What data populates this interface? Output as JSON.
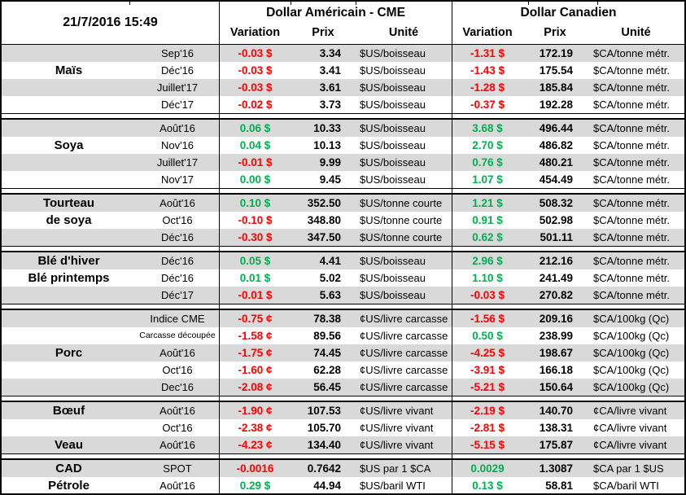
{
  "timestamp": "21/7/2016 15:49",
  "header": {
    "us_group": "Dollar Américain - CME",
    "ca_group": "Dollar Canadien",
    "columns": {
      "variation": "Variation",
      "prix": "Prix",
      "unite": "Unité"
    }
  },
  "colors": {
    "up": "#00B050",
    "down": "#FF0000",
    "row_alt": "#D9D9D9",
    "border": "#000000"
  },
  "sections": [
    {
      "name": "mais",
      "rows": [
        {
          "label": "",
          "month": "Sep'16",
          "us_var": "-0.03 $",
          "us_dir": "down",
          "us_prix": "3.34",
          "us_unit": "$US/boisseau",
          "ca_var": "-1.31 $",
          "ca_dir": "down",
          "ca_prix": "172.19",
          "ca_unit": "$CA/tonne métr."
        },
        {
          "label": "Maïs",
          "month": "Déc'16",
          "us_var": "-0.03 $",
          "us_dir": "down",
          "us_prix": "3.41",
          "us_unit": "$US/boisseau",
          "ca_var": "-1.43 $",
          "ca_dir": "down",
          "ca_prix": "175.54",
          "ca_unit": "$CA/tonne métr."
        },
        {
          "label": "",
          "month": "Juillet'17",
          "us_var": "-0.03 $",
          "us_dir": "down",
          "us_prix": "3.61",
          "us_unit": "$US/boisseau",
          "ca_var": "-1.28 $",
          "ca_dir": "down",
          "ca_prix": "185.84",
          "ca_unit": "$CA/tonne métr."
        },
        {
          "label": "",
          "month": "Déc'17",
          "us_var": "-0.02 $",
          "us_dir": "down",
          "us_prix": "3.73",
          "us_unit": "$US/boisseau",
          "ca_var": "-0.37 $",
          "ca_dir": "down",
          "ca_prix": "192.28",
          "ca_unit": "$CA/tonne métr."
        }
      ]
    },
    {
      "name": "soya",
      "rows": [
        {
          "label": "",
          "month": "Août'16",
          "us_var": "0.06 $",
          "us_dir": "up",
          "us_prix": "10.33",
          "us_unit": "$US/boisseau",
          "ca_var": "3.68 $",
          "ca_dir": "up",
          "ca_prix": "496.44",
          "ca_unit": "$CA/tonne métr."
        },
        {
          "label": "Soya",
          "month": "Nov'16",
          "us_var": "0.04 $",
          "us_dir": "up",
          "us_prix": "10.13",
          "us_unit": "$US/boisseau",
          "ca_var": "2.70 $",
          "ca_dir": "up",
          "ca_prix": "486.82",
          "ca_unit": "$CA/tonne métr."
        },
        {
          "label": "",
          "month": "Juillet'17",
          "us_var": "-0.01 $",
          "us_dir": "down",
          "us_prix": "9.99",
          "us_unit": "$US/boisseau",
          "ca_var": "0.76 $",
          "ca_dir": "up",
          "ca_prix": "480.21",
          "ca_unit": "$CA/tonne métr."
        },
        {
          "label": "",
          "month": "Nov'17",
          "us_var": "0.00 $",
          "us_dir": "up",
          "us_prix": "9.45",
          "us_unit": "$US/boisseau",
          "ca_var": "1.07 $",
          "ca_dir": "up",
          "ca_prix": "454.49",
          "ca_unit": "$CA/tonne métr."
        }
      ]
    },
    {
      "name": "tourteau-de-soya",
      "rows": [
        {
          "label": "Tourteau",
          "month": "Août'16",
          "us_var": "0.10 $",
          "us_dir": "up",
          "us_prix": "352.50",
          "us_unit": "$US/tonne courte",
          "ca_var": "1.21 $",
          "ca_dir": "up",
          "ca_prix": "508.32",
          "ca_unit": "$CA/tonne métr."
        },
        {
          "label": "de soya",
          "month": "Oct'16",
          "us_var": "-0.10 $",
          "us_dir": "down",
          "us_prix": "348.80",
          "us_unit": "$US/tonne courte",
          "ca_var": "0.91 $",
          "ca_dir": "up",
          "ca_prix": "502.98",
          "ca_unit": "$CA/tonne métr."
        },
        {
          "label": "",
          "month": "Déc'16",
          "us_var": "-0.30 $",
          "us_dir": "down",
          "us_prix": "347.50",
          "us_unit": "$US/tonne courte",
          "ca_var": "0.62 $",
          "ca_dir": "up",
          "ca_prix": "501.11",
          "ca_unit": "$CA/tonne métr."
        }
      ]
    },
    {
      "name": "ble",
      "rows": [
        {
          "label": "Blé d'hiver",
          "month": "Déc'16",
          "us_var": "0.05 $",
          "us_dir": "up",
          "us_prix": "4.41",
          "us_unit": "$US/boisseau",
          "ca_var": "2.96 $",
          "ca_dir": "up",
          "ca_prix": "212.16",
          "ca_unit": "$CA/tonne métr."
        },
        {
          "label": "Blé printemps",
          "month": "Déc'16",
          "us_var": "0.01 $",
          "us_dir": "up",
          "us_prix": "5.02",
          "us_unit": "$US/boisseau",
          "ca_var": "1.10 $",
          "ca_dir": "up",
          "ca_prix": "241.49",
          "ca_unit": "$CA/tonne métr."
        },
        {
          "label": "",
          "month": "Déc'17",
          "us_var": "-0.01 $",
          "us_dir": "down",
          "us_prix": "5.63",
          "us_unit": "$US/boisseau",
          "ca_var": "-0.03 $",
          "ca_dir": "down",
          "ca_prix": "270.82",
          "ca_unit": "$CA/tonne métr."
        }
      ]
    },
    {
      "name": "porc",
      "rows": [
        {
          "label": "",
          "month": "Indice CME",
          "us_var": "-0.75 ¢",
          "us_dir": "down",
          "us_prix": "78.38",
          "us_unit": "¢US/livre carcasse",
          "ca_var": "-1.56 $",
          "ca_dir": "down",
          "ca_prix": "209.16",
          "ca_unit": "$CA/100kg (Qc)"
        },
        {
          "label": "",
          "month": "Carcasse découpée",
          "small_month": true,
          "us_var": "-1.58 ¢",
          "us_dir": "down",
          "us_prix": "89.56",
          "us_unit": "¢US/livre carcasse",
          "ca_var": "0.50 $",
          "ca_dir": "up",
          "ca_prix": "238.99",
          "ca_unit": "$CA/100kg (Qc)"
        },
        {
          "label": "Porc",
          "month": "Août'16",
          "us_var": "-1.75 ¢",
          "us_dir": "down",
          "us_prix": "74.45",
          "us_unit": "¢US/livre carcasse",
          "ca_var": "-4.25 $",
          "ca_dir": "down",
          "ca_prix": "198.67",
          "ca_unit": "$CA/100kg (Qc)"
        },
        {
          "label": "",
          "month": "Oct'16",
          "us_var": "-1.60 ¢",
          "us_dir": "down",
          "us_prix": "62.28",
          "us_unit": "¢US/livre carcasse",
          "ca_var": "-3.91 $",
          "ca_dir": "down",
          "ca_prix": "166.18",
          "ca_unit": "$CA/100kg (Qc)"
        },
        {
          "label": "",
          "month": "Dec'16",
          "us_var": "-2.08 ¢",
          "us_dir": "down",
          "us_prix": "56.45",
          "us_unit": "¢US/livre carcasse",
          "ca_var": "-5.21 $",
          "ca_dir": "down",
          "ca_prix": "150.64",
          "ca_unit": "$CA/100kg (Qc)"
        }
      ]
    },
    {
      "name": "boeuf-veau",
      "rows": [
        {
          "label": "Bœuf",
          "month": "Août'16",
          "us_var": "-1.90 ¢",
          "us_dir": "down",
          "us_prix": "107.53",
          "us_unit": "¢US/livre vivant",
          "ca_var": "-2.19 $",
          "ca_dir": "down",
          "ca_prix": "140.70",
          "ca_unit": "¢CA/livre vivant"
        },
        {
          "label": "",
          "month": "Oct'16",
          "us_var": "-2.38 ¢",
          "us_dir": "down",
          "us_prix": "105.70",
          "us_unit": "¢US/livre vivant",
          "ca_var": "-2.81 $",
          "ca_dir": "down",
          "ca_prix": "138.31",
          "ca_unit": "¢CA/livre vivant"
        },
        {
          "label": "Veau",
          "month": "Août'16",
          "us_var": "-4.23 ¢",
          "us_dir": "down",
          "us_prix": "134.40",
          "us_unit": "¢US/livre vivant",
          "ca_var": "-5.15 $",
          "ca_dir": "down",
          "ca_prix": "175.87",
          "ca_unit": "¢CA/livre vivant"
        }
      ]
    },
    {
      "name": "cad-petrole",
      "rows": [
        {
          "label": "CAD",
          "month": "SPOT",
          "us_var": "-0.0016",
          "us_dir": "down",
          "us_prix": "0.7642",
          "us_unit": "$US par 1 $CA",
          "ca_var": "0.0029",
          "ca_dir": "up",
          "ca_prix": "1.3087",
          "ca_unit": "$CA par 1 $US"
        },
        {
          "label": "Pétrole",
          "month": "Août'16",
          "us_var": "0.29 $",
          "us_dir": "up",
          "us_prix": "44.94",
          "us_unit": "$US/baril WTI",
          "ca_var": "0.13 $",
          "ca_dir": "up",
          "ca_prix": "58.81",
          "ca_unit": "$CA/baril WTI"
        }
      ]
    }
  ]
}
